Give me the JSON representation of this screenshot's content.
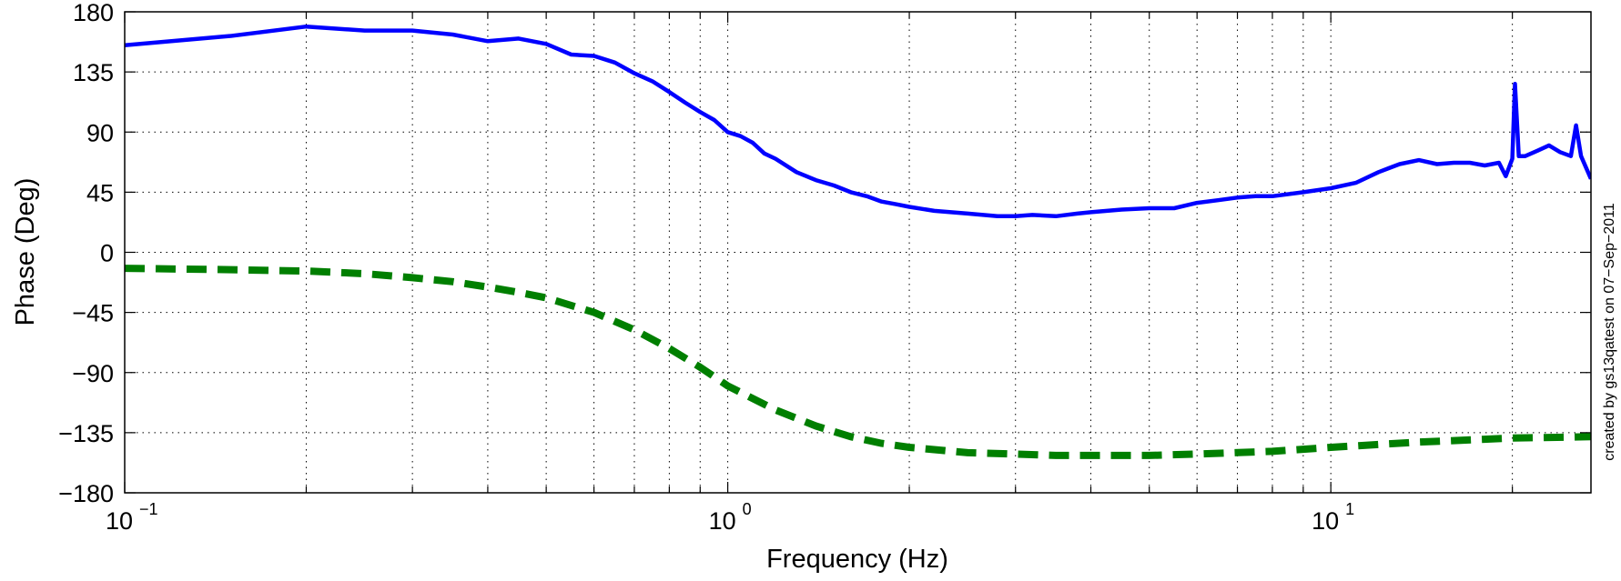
{
  "chart_data": {
    "type": "line",
    "title": "",
    "xlabel": "Frequency (Hz)",
    "ylabel": "Phase (Deg)",
    "xscale": "log",
    "xlim": [
      0.1,
      27
    ],
    "ylim": [
      -180,
      180
    ],
    "grid": true,
    "legend": "none",
    "side_note": "created by gs13qatest on 07−Sep−2011",
    "x_ticks": [
      {
        "value": 0.1,
        "base": "10",
        "exp": "−1"
      },
      {
        "value": 1,
        "base": "10",
        "exp": "0"
      },
      {
        "value": 10,
        "base": "10",
        "exp": "1"
      }
    ],
    "y_ticks": [
      {
        "value": 180,
        "label": "180"
      },
      {
        "value": 135,
        "label": "135"
      },
      {
        "value": 90,
        "label": "90"
      },
      {
        "value": 45,
        "label": "45"
      },
      {
        "value": 0,
        "label": "0"
      },
      {
        "value": -45,
        "label": "−45"
      },
      {
        "value": -90,
        "label": "−90"
      },
      {
        "value": -135,
        "label": "−135"
      },
      {
        "value": -180,
        "label": "−180"
      }
    ],
    "series": [
      {
        "color": "#0000ff",
        "style": "solid",
        "x": [
          0.1,
          0.15,
          0.2,
          0.25,
          0.3,
          0.35,
          0.4,
          0.45,
          0.5,
          0.55,
          0.6,
          0.65,
          0.7,
          0.75,
          0.8,
          0.85,
          0.9,
          0.95,
          1.0,
          1.05,
          1.1,
          1.15,
          1.2,
          1.3,
          1.4,
          1.5,
          1.6,
          1.7,
          1.8,
          1.9,
          2.0,
          2.2,
          2.5,
          2.8,
          3.0,
          3.2,
          3.5,
          3.8,
          4.0,
          4.5,
          5.0,
          5.5,
          6.0,
          6.5,
          7.0,
          7.5,
          8.0,
          9.0,
          10.0,
          11.0,
          12.0,
          13.0,
          14.0,
          15.0,
          16.0,
          17.0,
          18.0,
          19.0,
          19.5,
          20.0,
          20.2,
          20.5,
          21.0,
          22.0,
          23.0,
          24.0,
          25.0,
          25.5,
          26.0,
          27.0
        ],
        "y": [
          155,
          162,
          169,
          166,
          166,
          163,
          158,
          160,
          156,
          148,
          147,
          142,
          134,
          128,
          120,
          112,
          105,
          99,
          90,
          87,
          82,
          74,
          70,
          60,
          54,
          50,
          45,
          42,
          38,
          36,
          34,
          31,
          29,
          27,
          27,
          28,
          27,
          29,
          30,
          32,
          33,
          33,
          37,
          39,
          41,
          42,
          42,
          45,
          48,
          52,
          60,
          66,
          69,
          66,
          67,
          67,
          65,
          67,
          57,
          70,
          126,
          72,
          72,
          76,
          80,
          75,
          72,
          95,
          72,
          55
        ]
      },
      {
        "color": "#007f00",
        "style": "dashed",
        "x": [
          0.1,
          0.15,
          0.2,
          0.25,
          0.3,
          0.35,
          0.4,
          0.45,
          0.5,
          0.6,
          0.7,
          0.8,
          0.9,
          1.0,
          1.2,
          1.4,
          1.6,
          1.8,
          2.0,
          2.5,
          3.0,
          3.5,
          4.0,
          5.0,
          6.0,
          8.0,
          10.0,
          14.0,
          20.0,
          27.0
        ],
        "y": [
          -12,
          -13,
          -14,
          -16,
          -19,
          -22,
          -26,
          -30,
          -34,
          -45,
          -58,
          -72,
          -86,
          -100,
          -118,
          -130,
          -138,
          -143,
          -146,
          -150,
          -151,
          -152,
          -152,
          -152,
          -151,
          -149,
          -146,
          -142,
          -139,
          -138
        ]
      }
    ]
  }
}
